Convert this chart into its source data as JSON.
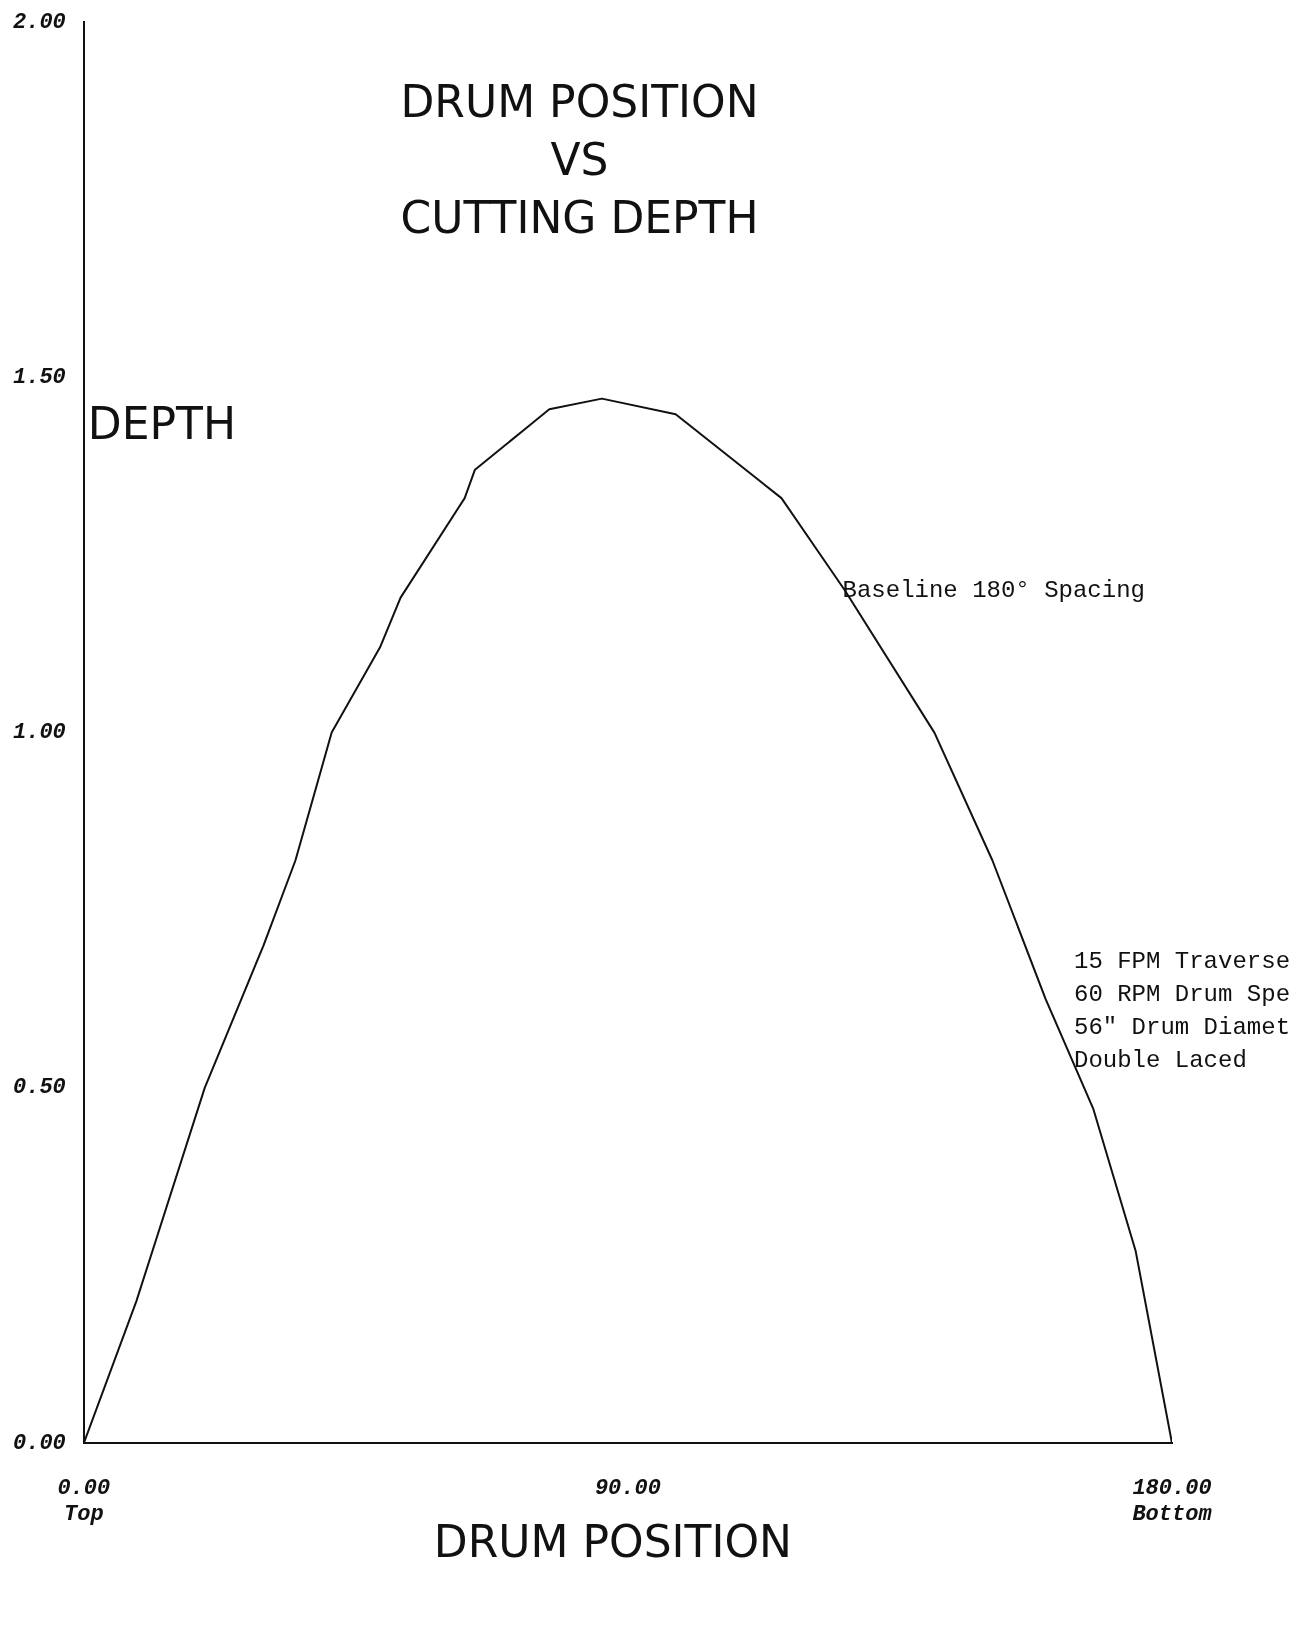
{
  "chart_data": {
    "type": "line",
    "title": "DRUM POSITION\nVS\nCUTTING DEPTH",
    "xlabel": "DRUM POSITION",
    "ylabel": "DEPTH",
    "xlim": [
      0,
      180
    ],
    "xticks": [
      {
        "value": 0,
        "label": "0.00\nTop"
      },
      {
        "value": 90,
        "label": "90.00"
      },
      {
        "value": 180,
        "label": "180.00\nBottom"
      }
    ],
    "ylim": [
      0,
      2
    ],
    "yticks": [
      {
        "value": 0,
        "label": "0.00"
      },
      {
        "value": 0.5,
        "label": "0.50"
      },
      {
        "value": 1,
        "label": "1.00"
      },
      {
        "value": 1.5,
        "label": "1.50"
      },
      {
        "value": 2,
        "label": "2.00"
      }
    ],
    "grid": false,
    "legend": false,
    "marker": "none",
    "line_style": "solid",
    "series": [
      {
        "name": "Baseline 180° Spacing",
        "color": "#111111",
        "x": [
          0,
          8.7,
          20,
          29.7,
          35,
          41,
          49,
          52.4,
          63,
          64.7,
          73.4,
          77,
          85.7,
          97.9,
          115.4,
          125.9,
          140.7,
          150.3,
          159.1,
          167,
          174,
          180
        ],
        "values": [
          0,
          0.2,
          0.5,
          0.7,
          0.82,
          1.0,
          1.12,
          1.19,
          1.33,
          1.37,
          1.43,
          1.455,
          1.47,
          1.448,
          1.33,
          1.2,
          1.0,
          0.82,
          0.625,
          0.47,
          0.27,
          0
        ]
      }
    ],
    "annotations": [
      "15 FPM Traverse\n60 RPM Drum Spe\n56\" Drum Diamet\nDouble Laced"
    ]
  }
}
